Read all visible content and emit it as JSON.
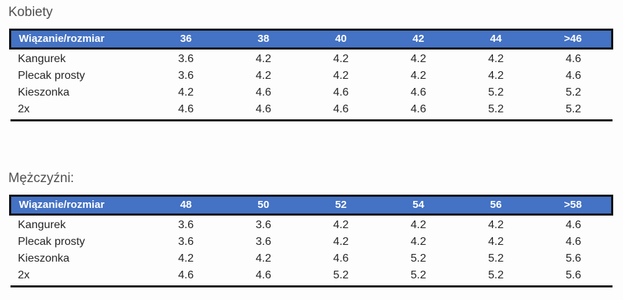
{
  "sections": [
    {
      "title": "Kobiety",
      "columns": [
        "Wiązanie/rozmiar",
        "36",
        "38",
        "40",
        "42",
        "44",
        ">46"
      ],
      "rows": [
        {
          "label": "Kangurek",
          "values": [
            "3.6",
            "4.2",
            "4.2",
            "4.2",
            "4.2",
            "4.6"
          ]
        },
        {
          "label": "Plecak prosty",
          "values": [
            "3.6",
            "4.2",
            "4.2",
            "4.2",
            "4.2",
            "4.6"
          ]
        },
        {
          "label": "Kieszonka",
          "values": [
            "4.2",
            "4.6",
            "4.6",
            "4.6",
            "5.2",
            "5.2"
          ]
        },
        {
          "label": "2x",
          "values": [
            "4.6",
            "4.6",
            "4.6",
            "4.6",
            "5.2",
            "5.2"
          ]
        }
      ]
    },
    {
      "title": "Mężczyźni:",
      "columns": [
        "Wiązanie/rozmiar",
        "48",
        "50",
        "52",
        "54",
        "56",
        ">58"
      ],
      "rows": [
        {
          "label": "Kangurek",
          "values": [
            "3.6",
            "3.6",
            "4.2",
            "4.2",
            "4.2",
            "4.6"
          ]
        },
        {
          "label": "Plecak prosty",
          "values": [
            "3.6",
            "3.6",
            "4.2",
            "4.2",
            "4.2",
            "4.6"
          ]
        },
        {
          "label": "Kieszonka",
          "values": [
            "4.2",
            "4.2",
            "4.6",
            "5.2",
            "5.2",
            "5.6"
          ]
        },
        {
          "label": "2x",
          "values": [
            "4.6",
            "4.6",
            "5.2",
            "5.2",
            "5.2",
            "5.6"
          ]
        }
      ]
    }
  ],
  "colors": {
    "header_bg": "#4472c4",
    "header_text": "#ffffff",
    "border": "#101010",
    "body_text": "#262626",
    "title_text": "#4f4f4f",
    "page_bg": "#fdfdfd"
  }
}
